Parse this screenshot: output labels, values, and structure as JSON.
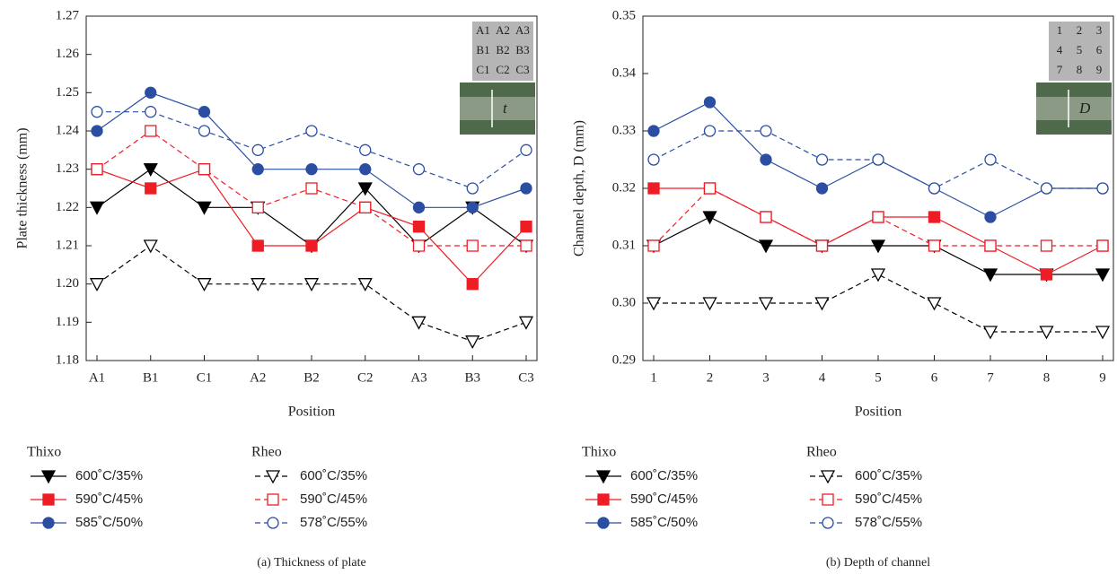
{
  "chart_data": [
    {
      "type": "line",
      "ylabel": "Plate thickness (mm)",
      "xlabel": "Position",
      "caption": "(a)  Thickness of plate",
      "categories": [
        "A1",
        "B1",
        "C1",
        "A2",
        "B2",
        "C2",
        "A3",
        "B3",
        "C3"
      ],
      "ylim": [
        1.18,
        1.27
      ],
      "yticks": [
        1.18,
        1.19,
        {
          "value": 1.2,
          "label": "1.20"
        },
        1.21,
        1.22,
        1.23,
        1.24,
        1.25,
        1.26,
        1.27
      ],
      "inset": {
        "labels": [
          "A1",
          "A2",
          "A3",
          "B1",
          "B2",
          "B3",
          "C1",
          "C2",
          "C3"
        ],
        "symbol": "t"
      },
      "series": [
        {
          "name": "600˚C/35%",
          "group": "Thixo",
          "color": "#000000",
          "marker": "tri",
          "filled": true,
          "dashed": false,
          "values": [
            1.22,
            1.23,
            1.22,
            1.22,
            1.21,
            1.225,
            1.21,
            1.22,
            1.21
          ]
        },
        {
          "name": "590˚C/45%",
          "group": "Thixo",
          "color": "#ee1c25",
          "marker": "square",
          "filled": true,
          "dashed": false,
          "values": [
            1.23,
            1.225,
            1.23,
            1.21,
            1.21,
            1.22,
            1.215,
            1.2,
            1.215
          ]
        },
        {
          "name": "585˚C/50%",
          "group": "Thixo",
          "color": "#2b4ea2",
          "marker": "circle",
          "filled": true,
          "dashed": false,
          "values": [
            1.24,
            1.25,
            1.245,
            1.23,
            1.23,
            1.23,
            1.22,
            1.22,
            1.225
          ]
        },
        {
          "name": "600˚C/35%",
          "group": "Rheo",
          "color": "#000000",
          "marker": "tri",
          "filled": false,
          "dashed": true,
          "values": [
            1.2,
            1.21,
            1.2,
            1.2,
            1.2,
            1.2,
            1.19,
            1.185,
            1.19
          ]
        },
        {
          "name": "590˚C/45%",
          "group": "Rheo",
          "color": "#ee1c25",
          "marker": "square",
          "filled": false,
          "dashed": true,
          "values": [
            1.23,
            1.24,
            1.23,
            1.22,
            1.225,
            1.22,
            1.21,
            1.21,
            1.21
          ]
        },
        {
          "name": "578˚C/55%",
          "group": "Rheo",
          "color": "#2b4ea2",
          "marker": "circle",
          "filled": false,
          "dashed": true,
          "values": [
            1.245,
            1.245,
            1.24,
            1.235,
            1.24,
            1.235,
            1.23,
            1.225,
            1.235
          ]
        }
      ]
    },
    {
      "type": "line",
      "ylabel": "Channel depth, D (mm)",
      "xlabel": "Position",
      "caption": "(b)  Depth of channel",
      "categories": [
        "1",
        "2",
        "3",
        "4",
        "5",
        "6",
        "7",
        "8",
        "9"
      ],
      "ylim": [
        0.29,
        0.35
      ],
      "yticks": [
        0.29,
        {
          "value": 0.3,
          "label": "0.30"
        },
        0.31,
        0.32,
        0.33,
        0.34,
        0.35
      ],
      "inset": {
        "labels": [
          "1",
          "2",
          "3",
          "4",
          "5",
          "6",
          "7",
          "8",
          "9"
        ],
        "symbol": "D"
      },
      "series": [
        {
          "name": "600˚C/35%",
          "group": "Thixo",
          "color": "#000000",
          "marker": "tri",
          "filled": true,
          "dashed": false,
          "values": [
            0.31,
            0.315,
            0.31,
            0.31,
            0.31,
            0.31,
            0.305,
            0.305,
            0.305
          ]
        },
        {
          "name": "590˚C/45%",
          "group": "Thixo",
          "color": "#ee1c25",
          "marker": "square",
          "filled": true,
          "dashed": false,
          "values": [
            0.32,
            0.32,
            0.315,
            0.31,
            0.315,
            0.315,
            0.31,
            0.305,
            0.31
          ]
        },
        {
          "name": "585˚C/50%",
          "group": "Thixo",
          "color": "#2b4ea2",
          "marker": "circle",
          "filled": true,
          "dashed": false,
          "values": [
            0.33,
            0.335,
            0.325,
            0.32,
            0.325,
            0.32,
            0.315,
            0.32,
            0.32
          ]
        },
        {
          "name": "600˚C/35%",
          "group": "Rheo",
          "color": "#000000",
          "marker": "tri",
          "filled": false,
          "dashed": true,
          "values": [
            0.3,
            0.3,
            0.3,
            0.3,
            0.305,
            0.3,
            0.295,
            0.295,
            0.295
          ]
        },
        {
          "name": "590˚C/45%",
          "group": "Rheo",
          "color": "#ee1c25",
          "marker": "square",
          "filled": false,
          "dashed": true,
          "values": [
            0.31,
            0.32,
            0.315,
            0.31,
            0.315,
            0.31,
            0.31,
            0.31,
            0.31
          ]
        },
        {
          "name": "578˚C/55%",
          "group": "Rheo",
          "color": "#2b4ea2",
          "marker": "circle",
          "filled": false,
          "dashed": true,
          "values": [
            0.325,
            0.33,
            0.33,
            0.325,
            0.325,
            0.32,
            0.325,
            0.32,
            0.32
          ]
        }
      ]
    }
  ]
}
